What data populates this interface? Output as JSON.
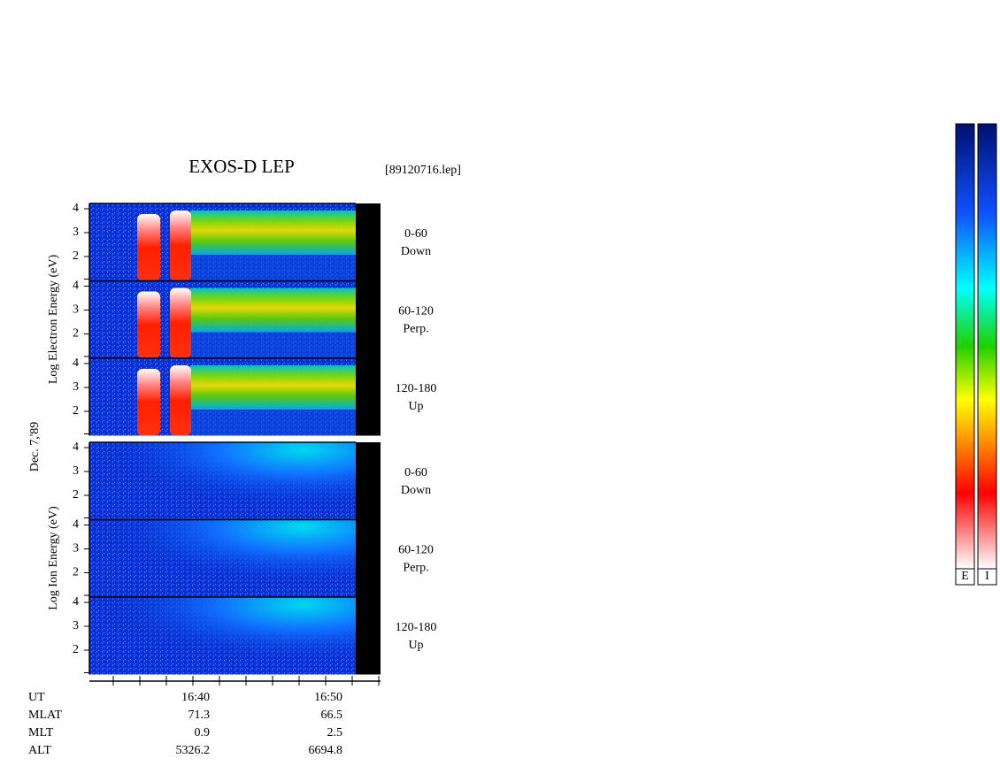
{
  "title": "EXOS-D LEP",
  "file": "[89120716.lep]",
  "date": "Dec. 7,'89",
  "groups": [
    {
      "ylabel": "Log Electron Energy (eV)",
      "panels": [
        {
          "range": "0-60",
          "direction": "Down",
          "yticks": [
            4,
            3,
            2
          ]
        },
        {
          "range": "60-120",
          "direction": "Perp.",
          "yticks": [
            4,
            3,
            2
          ]
        },
        {
          "range": "120-180",
          "direction": "Up",
          "yticks": [
            4,
            3,
            2
          ]
        }
      ]
    },
    {
      "ylabel": "Log Ion Energy (eV)",
      "panels": [
        {
          "range": "0-60",
          "direction": "Down",
          "yticks": [
            4,
            3,
            2
          ]
        },
        {
          "range": "60-120",
          "direction": "Perp.",
          "yticks": [
            4,
            3,
            2
          ]
        },
        {
          "range": "120-180",
          "direction": "Up",
          "yticks": [
            4,
            3,
            2
          ]
        }
      ]
    }
  ],
  "table": {
    "rows": [
      {
        "label": "UT",
        "values": [
          "16:40",
          "16:50"
        ]
      },
      {
        "label": "MLAT",
        "values": [
          71.3,
          66.5
        ]
      },
      {
        "label": "MLT",
        "values": [
          0.9,
          2.5
        ]
      },
      {
        "label": "ALT",
        "values": [
          5326.2,
          6694.8
        ]
      }
    ]
  },
  "colorbars": [
    "E",
    "I"
  ]
}
